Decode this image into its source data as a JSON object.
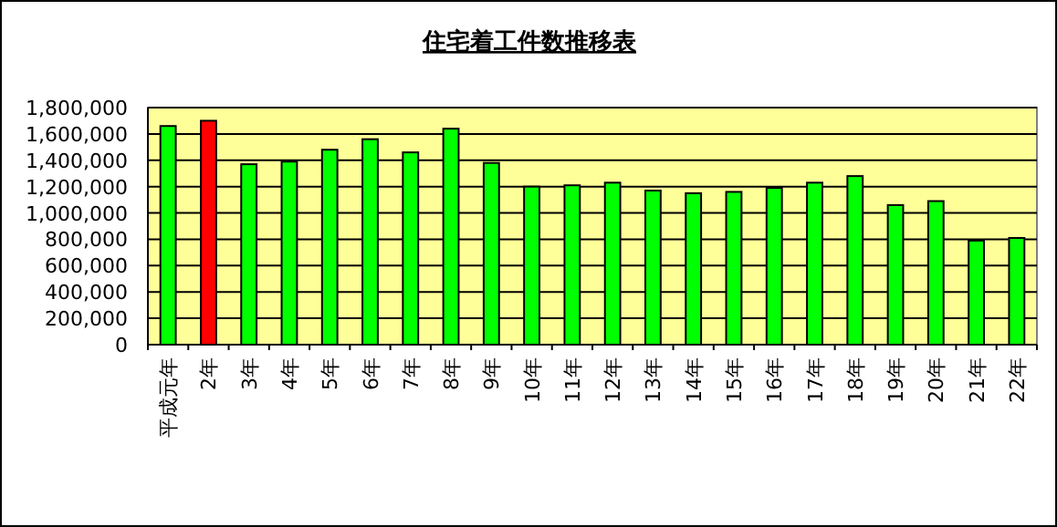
{
  "chart_data": {
    "type": "bar",
    "title": "住宅着工件数推移表",
    "categories": [
      "平成元年",
      "2年",
      "3年",
      "4年",
      "5年",
      "6年",
      "7年",
      "8年",
      "9年",
      "10年",
      "11年",
      "12年",
      "13年",
      "14年",
      "15年",
      "16年",
      "17年",
      "18年",
      "19年",
      "20年",
      "21年",
      "22年"
    ],
    "values": [
      1660000,
      1700000,
      1370000,
      1390000,
      1480000,
      1560000,
      1460000,
      1640000,
      1380000,
      1200000,
      1210000,
      1230000,
      1170000,
      1150000,
      1160000,
      1190000,
      1230000,
      1280000,
      1060000,
      1090000,
      790000,
      810000
    ],
    "colors": [
      "#00ff00",
      "#ff0000",
      "#00ff00",
      "#00ff00",
      "#00ff00",
      "#00ff00",
      "#00ff00",
      "#00ff00",
      "#00ff00",
      "#00ff00",
      "#00ff00",
      "#00ff00",
      "#00ff00",
      "#00ff00",
      "#00ff00",
      "#00ff00",
      "#00ff00",
      "#00ff00",
      "#00ff00",
      "#00ff00",
      "#00ff00",
      "#00ff00"
    ],
    "ylim": [
      0,
      1800000
    ],
    "yticks": [
      {
        "value": 0,
        "label": "0"
      },
      {
        "value": 200000,
        "label": "200,000"
      },
      {
        "value": 400000,
        "label": "400,000"
      },
      {
        "value": 600000,
        "label": "600,000"
      },
      {
        "value": 800000,
        "label": "800,000"
      },
      {
        "value": 1000000,
        "label": "1,000,000"
      },
      {
        "value": 1200000,
        "label": "1,200,000"
      },
      {
        "value": 1400000,
        "label": "1,400,000"
      },
      {
        "value": 1600000,
        "label": "1,600,000"
      },
      {
        "value": 1800000,
        "label": "1,800,000"
      }
    ],
    "grid": "y"
  }
}
